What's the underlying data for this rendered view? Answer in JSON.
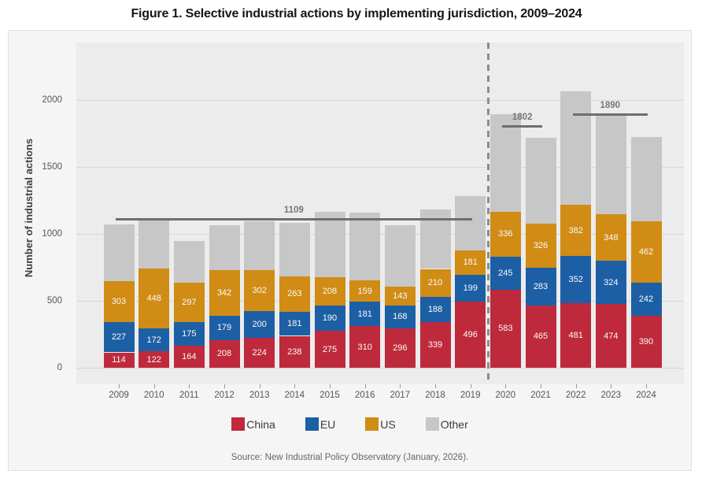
{
  "title": "Figure 1. Selective industrial actions by implementing jurisdiction, 2009–2024",
  "source": "Source: New Industrial Policy Observatory (January, 2026).",
  "y_axis_title": "Number of industrial actions",
  "colors": {
    "china": "#be2a3c",
    "eu": "#1d5fa5",
    "us": "#d08c15",
    "other": "#c7c7c7",
    "avg_line": "#6e6e6e",
    "panel_bg": "#ececec",
    "card_bg": "#f5f5f5"
  },
  "legend": {
    "items": [
      {
        "label": "China",
        "color": "#be2a3c"
      },
      {
        "label": "EU",
        "color": "#1d5fa5"
      },
      {
        "label": "US",
        "color": "#d08c15"
      },
      {
        "label": "Other",
        "color": "#c7c7c7"
      }
    ]
  },
  "chart_data": {
    "type": "bar",
    "stacked": true,
    "title": "Figure 1. Selective industrial actions by implementing jurisdiction, 2009–2024",
    "xlabel": "",
    "ylabel": "Number of industrial actions",
    "ylim": [
      0,
      2200
    ],
    "yticks": [
      0,
      500,
      1000,
      1500,
      2000
    ],
    "grid": "horizontal",
    "legend_position": "bottom",
    "categories": [
      "2009",
      "2010",
      "2011",
      "2012",
      "2013",
      "2014",
      "2015",
      "2016",
      "2017",
      "2018",
      "2019",
      "2020",
      "2021",
      "2022",
      "2023",
      "2024"
    ],
    "series": [
      {
        "name": "China",
        "color": "#be2a3c",
        "labels_shown": true,
        "values": [
          114,
          122,
          164,
          208,
          224,
          238,
          275,
          310,
          296,
          339,
          496,
          583,
          465,
          481,
          474,
          390
        ]
      },
      {
        "name": "EU",
        "color": "#1d5fa5",
        "labels_shown": true,
        "values": [
          227,
          172,
          175,
          179,
          200,
          181,
          190,
          181,
          168,
          188,
          199,
          245,
          283,
          352,
          324,
          242
        ]
      },
      {
        "name": "US",
        "color": "#d08c15",
        "labels_shown": true,
        "values": [
          303,
          448,
          297,
          342,
          302,
          263,
          208,
          159,
          143,
          210,
          181,
          336,
          326,
          382,
          348,
          462
        ]
      },
      {
        "name": "Other",
        "color": "#c7c7c7",
        "labels_shown": false,
        "values_estimated_from_pixels": true,
        "values": [
          426,
          357,
          309,
          336,
          369,
          398,
          492,
          505,
          458,
          443,
          404,
          726,
          640,
          849,
          740,
          626
        ]
      }
    ],
    "annotations": [
      {
        "label": "1109",
        "value": 1109,
        "from": "2009",
        "to": "2019"
      },
      {
        "label": "1802",
        "value": 1802,
        "from": "2020",
        "to": "2021"
      },
      {
        "label": "1890",
        "value": 1890,
        "from": "2022",
        "to": "2024"
      }
    ],
    "separator_after_category": "2019"
  }
}
